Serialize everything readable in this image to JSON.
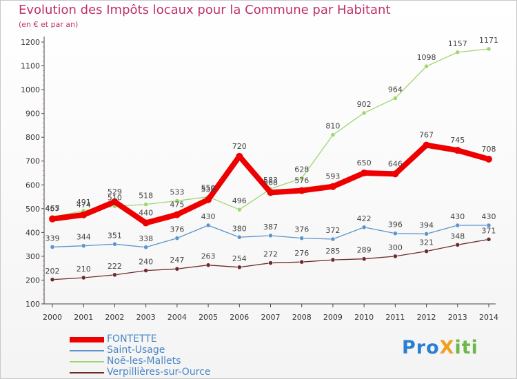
{
  "title": "Evolution des Impôts locaux pour la Commune par Habitant",
  "subtitle": "(en € et par an)",
  "logo": "ProXiti",
  "chart_data": {
    "type": "line",
    "x": [
      "2000",
      "2001",
      "2002",
      "2003",
      "2004",
      "2005",
      "2006",
      "2007",
      "2008",
      "2009",
      "2010",
      "2011",
      "2012",
      "2013",
      "2014"
    ],
    "ylim": [
      100,
      1200
    ],
    "yticks": [
      100,
      200,
      300,
      400,
      500,
      600,
      700,
      800,
      900,
      1000,
      1100,
      1200
    ],
    "grid": false,
    "legend_position": "bottom-left",
    "series": [
      {
        "name": "FONTETTE",
        "color": "#ee0000",
        "values": [
          457,
          474,
          529,
          440,
          475,
          538,
          720,
          568,
          576,
          593,
          650,
          646,
          767,
          745,
          708
        ]
      },
      {
        "name": "Saint-Usage",
        "color": "#5b94cc",
        "values": [
          339,
          344,
          351,
          338,
          376,
          430,
          380,
          387,
          376,
          372,
          422,
          396,
          394,
          430,
          430
        ]
      },
      {
        "name": "Noë-les-Mallets",
        "color": "#9fd66e",
        "values": [
          465,
          491,
          510,
          518,
          533,
          550,
          496,
          583,
          628,
          810,
          902,
          964,
          1098,
          1157,
          1171
        ]
      },
      {
        "name": "Verpillières-sur-Ource",
        "color": "#6e2b2b",
        "values": [
          202,
          210,
          222,
          240,
          247,
          263,
          254,
          272,
          276,
          285,
          289,
          300,
          321,
          348,
          371
        ]
      }
    ]
  }
}
